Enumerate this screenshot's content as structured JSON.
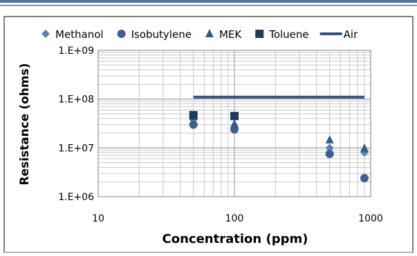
{
  "chart_data": {
    "type": "scatter",
    "title": "",
    "xlabel": "Concentration (ppm)",
    "ylabel": "Resistance (ohms)",
    "x_scale": "log",
    "y_scale": "log",
    "xlim": [
      10,
      1000
    ],
    "ylim": [
      1000000,
      1000000000
    ],
    "x_tick_labels": [
      "10",
      "100",
      "1000"
    ],
    "y_tick_labels": [
      "1.E+06",
      "1.E+07",
      "1.E+08",
      "1.E+09"
    ],
    "grid": true,
    "legend_position": "top",
    "series": [
      {
        "name": "Methanol",
        "marker": "diamond",
        "color": "#4f81bd",
        "points": [
          [
            50,
            38000000
          ],
          [
            100,
            27000000
          ],
          [
            500,
            10000000
          ],
          [
            900,
            8000000
          ]
        ]
      },
      {
        "name": "Isobutylene",
        "marker": "circle",
        "color": "#3a5f95",
        "points": [
          [
            50,
            30000000
          ],
          [
            100,
            24000000
          ],
          [
            500,
            7500000
          ],
          [
            900,
            2400000
          ]
        ]
      },
      {
        "name": "MEK",
        "marker": "triangle",
        "color": "#2e5c8a",
        "points": [
          [
            50,
            44000000
          ],
          [
            100,
            31000000
          ],
          [
            500,
            14500000
          ],
          [
            900,
            9800000
          ]
        ]
      },
      {
        "name": "Toluene",
        "marker": "square",
        "color": "#1f3b5c",
        "points": [
          [
            50,
            47000000
          ],
          [
            100,
            45000000
          ]
        ]
      },
      {
        "name": "Air",
        "marker": "line",
        "color": "#2e5286",
        "points": [
          [
            50,
            110000000
          ],
          [
            900,
            110000000
          ]
        ]
      }
    ]
  }
}
